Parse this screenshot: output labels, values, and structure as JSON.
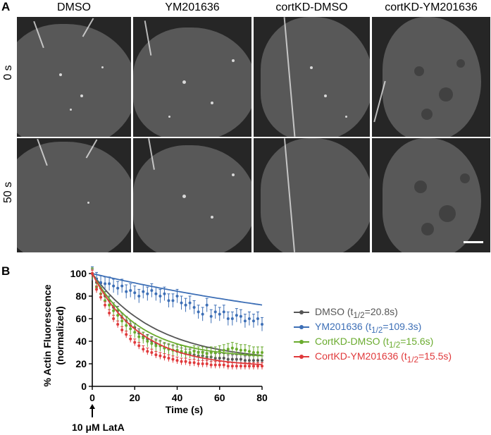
{
  "figure": {
    "panel_a_letter": "A",
    "panel_b_letter": "B",
    "columns": [
      "DMSO",
      "YM201636",
      "cortKD-DMSO",
      "cortKD-YM201636"
    ],
    "rows": [
      "0 s",
      "50 s"
    ],
    "latA_label": "10 μM LatA"
  },
  "legend": [
    {
      "name": "DMSO",
      "thalf": "20.8s",
      "color": "#555555"
    },
    {
      "name": "YM201636",
      "thalf": "109.3s",
      "color": "#3d6fb6"
    },
    {
      "name": "CortKD-DMSO",
      "thalf": "15.6s",
      "color": "#6aab2e"
    },
    {
      "name": "CortKD-YM201636",
      "thalf": "15.5s",
      "color": "#e0393b"
    }
  ],
  "chart_data": {
    "type": "line",
    "xlabel": "Time (s)",
    "ylabel_line1": "% Actin Fluorescence",
    "ylabel_line2": "(normalized)",
    "xlim": [
      0,
      80
    ],
    "ylim": [
      0,
      100
    ],
    "xticks": [
      0,
      20,
      40,
      60,
      80
    ],
    "yticks": [
      0,
      20,
      40,
      60,
      80,
      100
    ],
    "series": [
      {
        "name": "DMSO",
        "color": "#555555",
        "plateau": 22,
        "thalf": 20.8,
        "x": [
          0,
          2,
          4,
          6,
          8,
          10,
          12,
          14,
          16,
          18,
          20,
          22,
          24,
          26,
          28,
          30,
          32,
          34,
          36,
          38,
          40,
          42,
          44,
          46,
          48,
          50,
          52,
          54,
          56,
          58,
          60,
          62,
          64,
          66,
          68,
          70,
          72,
          74,
          76,
          78,
          80
        ],
        "y": [
          100,
          92,
          87,
          80,
          76,
          70,
          67,
          61,
          58,
          54,
          52,
          47,
          44,
          42,
          40,
          38,
          36,
          34,
          33,
          32,
          31,
          30,
          29,
          29,
          28,
          27,
          27,
          26,
          26,
          25,
          25,
          25,
          24,
          24,
          24,
          24,
          23,
          23,
          23,
          23,
          23
        ],
        "err": 4
      },
      {
        "name": "YM201636",
        "color": "#3d6fb6",
        "plateau": 30,
        "thalf": 109.3,
        "x": [
          0,
          2,
          4,
          6,
          8,
          10,
          12,
          14,
          16,
          18,
          20,
          22,
          24,
          26,
          28,
          30,
          32,
          34,
          36,
          38,
          40,
          42,
          44,
          46,
          48,
          50,
          52,
          54,
          56,
          58,
          60,
          62,
          64,
          66,
          68,
          70,
          72,
          74,
          76,
          78,
          80
        ],
        "y": [
          100,
          95,
          92,
          91,
          91,
          89,
          87,
          89,
          84,
          85,
          83,
          80,
          84,
          82,
          85,
          82,
          80,
          82,
          76,
          76,
          80,
          74,
          72,
          74,
          70,
          66,
          64,
          72,
          62,
          66,
          64,
          66,
          60,
          60,
          63,
          62,
          58,
          60,
          58,
          60,
          55
        ],
        "err": 6
      },
      {
        "name": "CortKD-DMSO",
        "color": "#6aab2e",
        "plateau": 25,
        "thalf": 15.6,
        "x": [
          0,
          2,
          4,
          6,
          8,
          10,
          12,
          14,
          16,
          18,
          20,
          22,
          24,
          26,
          28,
          30,
          32,
          34,
          36,
          38,
          40,
          42,
          44,
          46,
          48,
          50,
          52,
          54,
          56,
          58,
          60,
          62,
          64,
          66,
          68,
          70,
          72,
          74,
          76,
          78,
          80
        ],
        "y": [
          100,
          88,
          82,
          76,
          72,
          67,
          63,
          58,
          54,
          51,
          48,
          44,
          43,
          40,
          38,
          36,
          36,
          34,
          33,
          32,
          32,
          31,
          30,
          30,
          31,
          30,
          30,
          29,
          30,
          30,
          31,
          32,
          33,
          34,
          33,
          32,
          32,
          31,
          30,
          30,
          30
        ],
        "err": 5
      },
      {
        "name": "CortKD-YM201636",
        "color": "#e0393b",
        "plateau": 17,
        "thalf": 15.5,
        "x": [
          0,
          2,
          4,
          6,
          8,
          10,
          12,
          14,
          16,
          18,
          20,
          22,
          24,
          26,
          28,
          30,
          32,
          34,
          36,
          38,
          40,
          42,
          44,
          46,
          48,
          50,
          52,
          54,
          56,
          58,
          60,
          62,
          64,
          66,
          68,
          70,
          72,
          74,
          76,
          78,
          80
        ],
        "y": [
          100,
          86,
          79,
          72,
          65,
          60,
          55,
          50,
          46,
          42,
          39,
          36,
          33,
          31,
          30,
          28,
          27,
          26,
          25,
          24,
          23,
          22,
          22,
          21,
          21,
          20,
          20,
          20,
          19,
          19,
          19,
          19,
          18,
          18,
          18,
          18,
          18,
          18,
          18,
          18,
          18
        ],
        "err": 3
      }
    ]
  }
}
